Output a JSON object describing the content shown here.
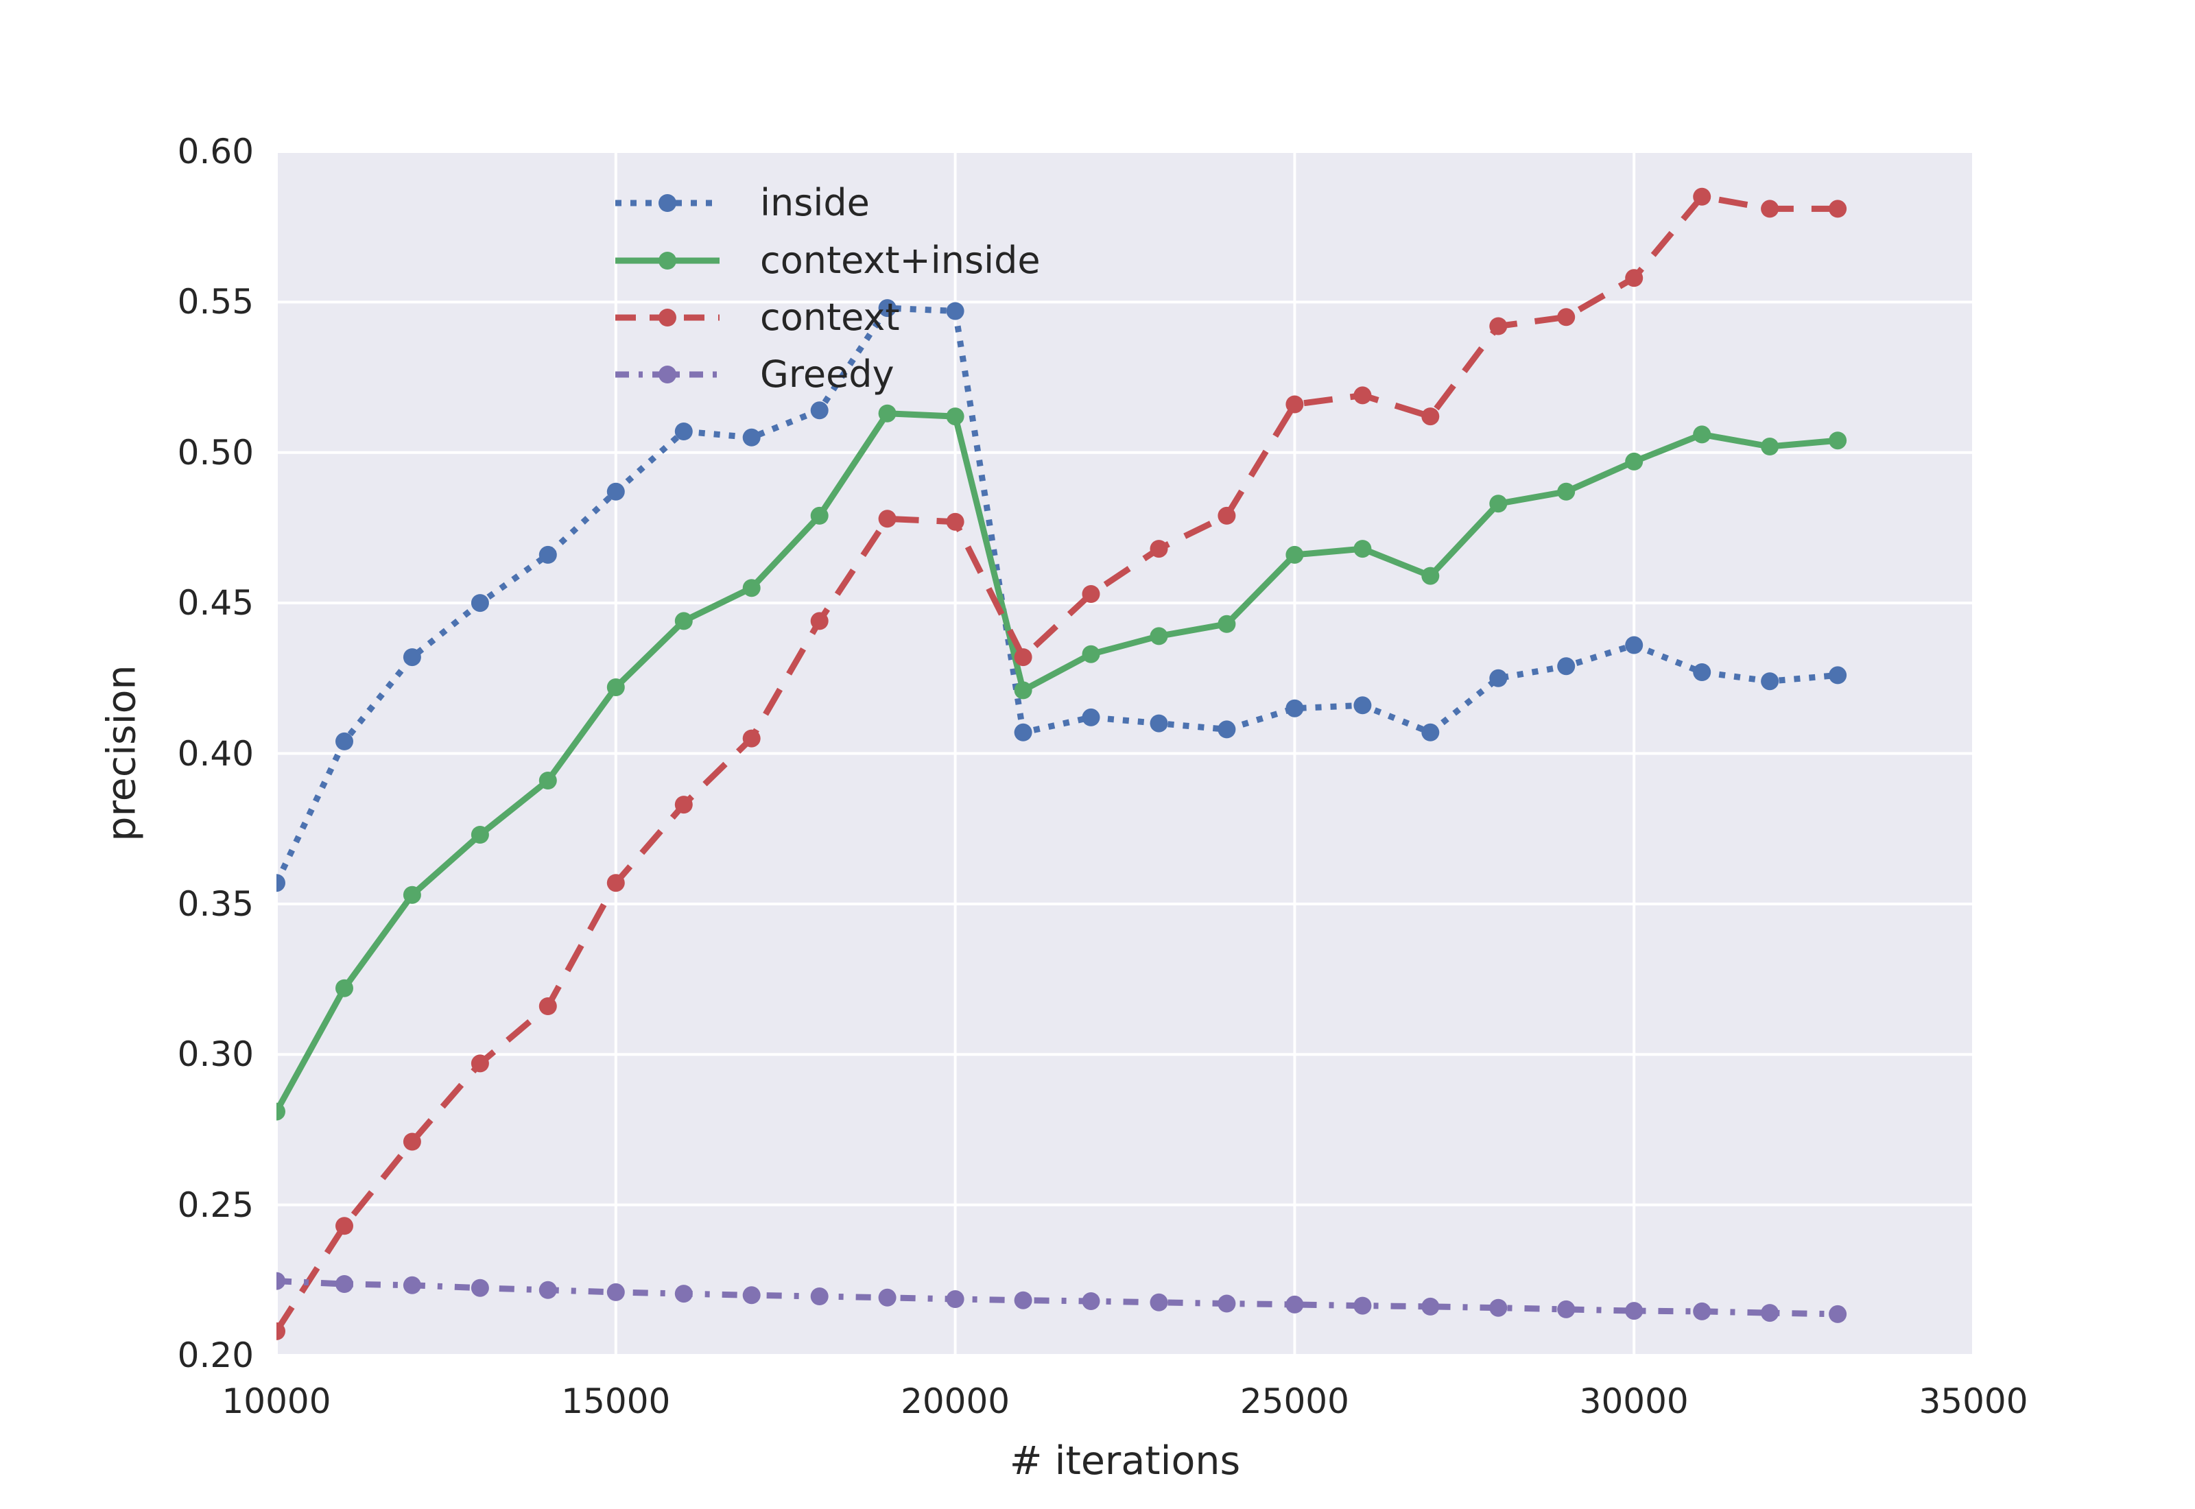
{
  "chart_data": {
    "type": "line",
    "title": "",
    "xlabel": "# iterations",
    "ylabel": "precision",
    "xlim": [
      10000,
      35000
    ],
    "ylim": [
      0.2,
      0.6
    ],
    "xticks": [
      10000,
      15000,
      20000,
      25000,
      30000,
      35000
    ],
    "xtick_labels": [
      "10000",
      "15000",
      "20000",
      "25000",
      "30000",
      "35000"
    ],
    "yticks": [
      0.2,
      0.25,
      0.3,
      0.35,
      0.4,
      0.45,
      0.5,
      0.55,
      0.6
    ],
    "ytick_labels": [
      "0.20",
      "0.25",
      "0.30",
      "0.35",
      "0.40",
      "0.45",
      "0.50",
      "0.55",
      "0.60"
    ],
    "grid": true,
    "legend_position": "upper-left",
    "legend_entries": [
      "inside",
      "context+inside",
      "context",
      "Greedy"
    ],
    "background_color": "#EAEAF2",
    "grid_color": "#FFFFFF",
    "text_color": "#262626",
    "x": [
      10000,
      11000,
      12000,
      13000,
      14000,
      15000,
      16000,
      17000,
      18000,
      19000,
      20000,
      21000,
      22000,
      23000,
      24000,
      25000,
      26000,
      27000,
      28000,
      29000,
      30000,
      31000,
      32000,
      33000
    ],
    "series": [
      {
        "name": "inside",
        "color": "#4C72B0",
        "linestyle": "dotted",
        "marker": "circle",
        "values": [
          0.357,
          0.404,
          0.432,
          0.45,
          0.466,
          0.487,
          0.507,
          0.505,
          0.514,
          0.548,
          0.547,
          0.407,
          0.412,
          0.41,
          0.408,
          0.415,
          0.416,
          0.407,
          0.425,
          0.429,
          0.436,
          0.427,
          0.424,
          0.426
        ]
      },
      {
        "name": "context+inside",
        "color": "#55A868",
        "linestyle": "solid",
        "marker": "circle",
        "values": [
          0.281,
          0.322,
          0.353,
          0.373,
          0.391,
          0.422,
          0.444,
          0.455,
          0.479,
          0.513,
          0.512,
          0.421,
          0.433,
          0.439,
          0.443,
          0.466,
          0.468,
          0.459,
          0.483,
          0.487,
          0.497,
          0.506,
          0.502,
          0.504
        ]
      },
      {
        "name": "context",
        "color": "#C44E52",
        "linestyle": "dashed",
        "marker": "circle",
        "values": [
          0.208,
          0.243,
          0.271,
          0.297,
          0.316,
          0.357,
          0.383,
          0.405,
          0.444,
          0.478,
          0.477,
          0.432,
          0.453,
          0.468,
          0.479,
          0.516,
          0.519,
          0.512,
          0.542,
          0.545,
          0.558,
          0.585,
          0.581,
          0.581
        ]
      },
      {
        "name": "Greedy",
        "color": "#8172B2",
        "linestyle": "dashdot",
        "marker": "circle",
        "values": [
          0.2247,
          0.2237,
          0.2233,
          0.2224,
          0.2217,
          0.221,
          0.2205,
          0.22,
          0.2196,
          0.2192,
          0.2187,
          0.2183,
          0.218,
          0.2176,
          0.2172,
          0.2169,
          0.2165,
          0.2162,
          0.2158,
          0.2153,
          0.2148,
          0.2146,
          0.2141,
          0.2137
        ]
      }
    ]
  }
}
